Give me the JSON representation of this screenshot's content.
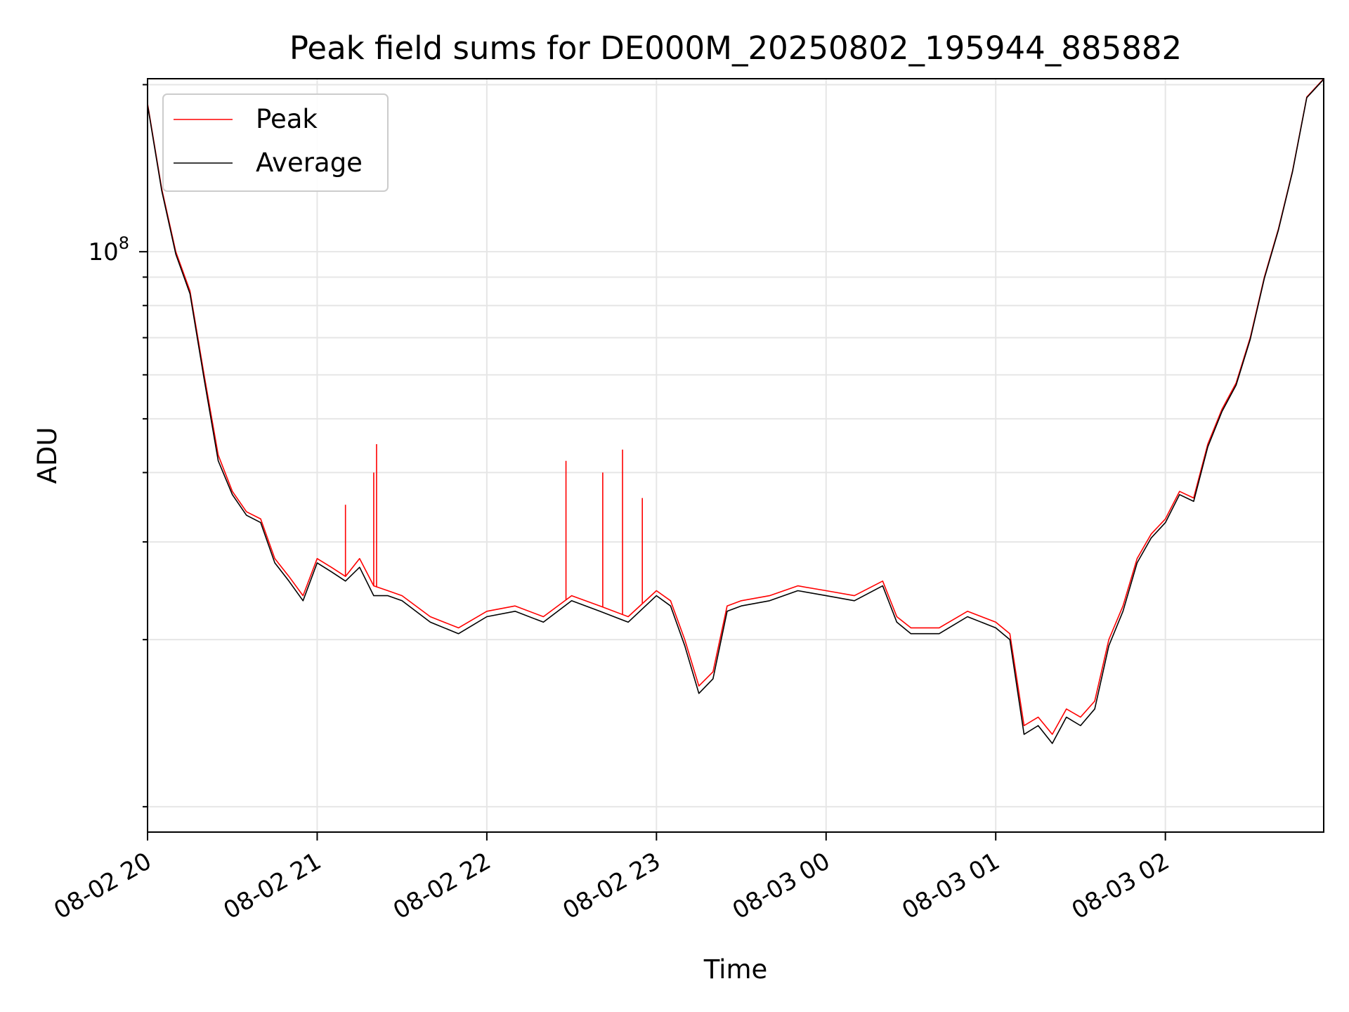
{
  "chart_data": {
    "type": "line",
    "title": "Peak field sums for DE000M_20250802_195944_885882",
    "xlabel": "Time",
    "ylabel": "ADU",
    "x_tick_labels": [
      "08-02 20",
      "08-02 21",
      "08-02 22",
      "08-02 23",
      "08-03 00",
      "08-03 01",
      "08-03 02"
    ],
    "y_tick_labels": [
      {
        "base": "10",
        "exp": "8"
      }
    ],
    "y_scale": "log",
    "ylim": [
      9000000,
      205000000
    ],
    "xlim": [
      "2025-08-02 20:00",
      "2025-08-03 02:56"
    ],
    "grid": true,
    "legend_placement": "top-left",
    "x": [
      "2025-08-02 20:00",
      "2025-08-02 20:05",
      "2025-08-02 20:10",
      "2025-08-02 20:15",
      "2025-08-02 20:20",
      "2025-08-02 20:25",
      "2025-08-02 20:30",
      "2025-08-02 20:35",
      "2025-08-02 20:40",
      "2025-08-02 20:45",
      "2025-08-02 20:50",
      "2025-08-02 20:55",
      "2025-08-02 21:00",
      "2025-08-02 21:05",
      "2025-08-02 21:10",
      "2025-08-02 21:15",
      "2025-08-02 21:20",
      "2025-08-02 21:25",
      "2025-08-02 21:30",
      "2025-08-02 21:40",
      "2025-08-02 21:50",
      "2025-08-02 22:00",
      "2025-08-02 22:10",
      "2025-08-02 22:20",
      "2025-08-02 22:30",
      "2025-08-02 22:40",
      "2025-08-02 22:50",
      "2025-08-02 23:00",
      "2025-08-02 23:05",
      "2025-08-02 23:10",
      "2025-08-02 23:15",
      "2025-08-02 23:20",
      "2025-08-02 23:25",
      "2025-08-02 23:30",
      "2025-08-02 23:40",
      "2025-08-02 23:50",
      "2025-08-03 00:00",
      "2025-08-03 00:10",
      "2025-08-03 00:20",
      "2025-08-03 00:25",
      "2025-08-03 00:30",
      "2025-08-03 00:40",
      "2025-08-03 00:50",
      "2025-08-03 01:00",
      "2025-08-03 01:05",
      "2025-08-03 01:10",
      "2025-08-03 01:15",
      "2025-08-03 01:20",
      "2025-08-03 01:25",
      "2025-08-03 01:30",
      "2025-08-03 01:35",
      "2025-08-03 01:40",
      "2025-08-03 01:45",
      "2025-08-03 01:50",
      "2025-08-03 01:55",
      "2025-08-03 02:00",
      "2025-08-03 02:05",
      "2025-08-03 02:10",
      "2025-08-03 02:15",
      "2025-08-03 02:20",
      "2025-08-03 02:25",
      "2025-08-03 02:30",
      "2025-08-03 02:35",
      "2025-08-03 02:40",
      "2025-08-03 02:45",
      "2025-08-03 02:50",
      "2025-08-03 02:56"
    ],
    "series": [
      {
        "name": "Peak",
        "color": "#ff0000",
        "values": [
          185000000,
          130000000,
          100000000,
          85000000,
          60000000,
          43000000,
          37000000,
          34000000,
          33000000,
          28000000,
          26000000,
          24000000,
          28000000,
          27000000,
          26000000,
          28000000,
          25000000,
          24500000,
          24000000,
          22000000,
          21000000,
          22500000,
          23000000,
          22000000,
          24000000,
          23000000,
          22000000,
          24500000,
          23500000,
          20000000,
          16500000,
          17500000,
          23000000,
          23500000,
          24000000,
          25000000,
          24500000,
          24000000,
          25500000,
          22000000,
          21000000,
          21000000,
          22500000,
          21500000,
          20500000,
          14000000,
          14500000,
          13500000,
          15000000,
          14500000,
          15500000,
          20000000,
          23000000,
          28000000,
          31000000,
          33000000,
          37000000,
          36000000,
          45000000,
          52000000,
          58000000,
          70000000,
          90000000,
          110000000,
          140000000,
          190000000,
          205000000
        ]
      },
      {
        "name": "Average",
        "color": "#000000",
        "values": [
          184000000,
          129000000,
          99000000,
          84000000,
          59000000,
          42000000,
          36500000,
          33500000,
          32500000,
          27500000,
          25500000,
          23500000,
          27500000,
          26500000,
          25500000,
          27000000,
          24000000,
          24000000,
          23500000,
          21500000,
          20500000,
          22000000,
          22500000,
          21500000,
          23500000,
          22500000,
          21500000,
          24000000,
          23000000,
          19500000,
          16000000,
          17000000,
          22500000,
          23000000,
          23500000,
          24500000,
          24000000,
          23500000,
          25000000,
          21500000,
          20500000,
          20500000,
          22000000,
          21000000,
          20000000,
          13500000,
          14000000,
          13000000,
          14500000,
          14000000,
          15000000,
          19500000,
          22500000,
          27500000,
          30500000,
          32500000,
          36500000,
          35500000,
          44500000,
          51500000,
          57500000,
          69500000,
          89500000,
          109500000,
          139500000,
          189500000,
          204500000
        ]
      }
    ],
    "spikes": [
      {
        "x": "2025-08-02 21:10",
        "value": 35000000
      },
      {
        "x": "2025-08-02 21:20",
        "value": 40000000
      },
      {
        "x": "2025-08-02 21:21",
        "value": 45000000
      },
      {
        "x": "2025-08-02 22:28",
        "value": 42000000
      },
      {
        "x": "2025-08-02 22:41",
        "value": 40000000
      },
      {
        "x": "2025-08-02 22:48",
        "value": 44000000
      },
      {
        "x": "2025-08-02 22:55",
        "value": 36000000
      }
    ]
  }
}
